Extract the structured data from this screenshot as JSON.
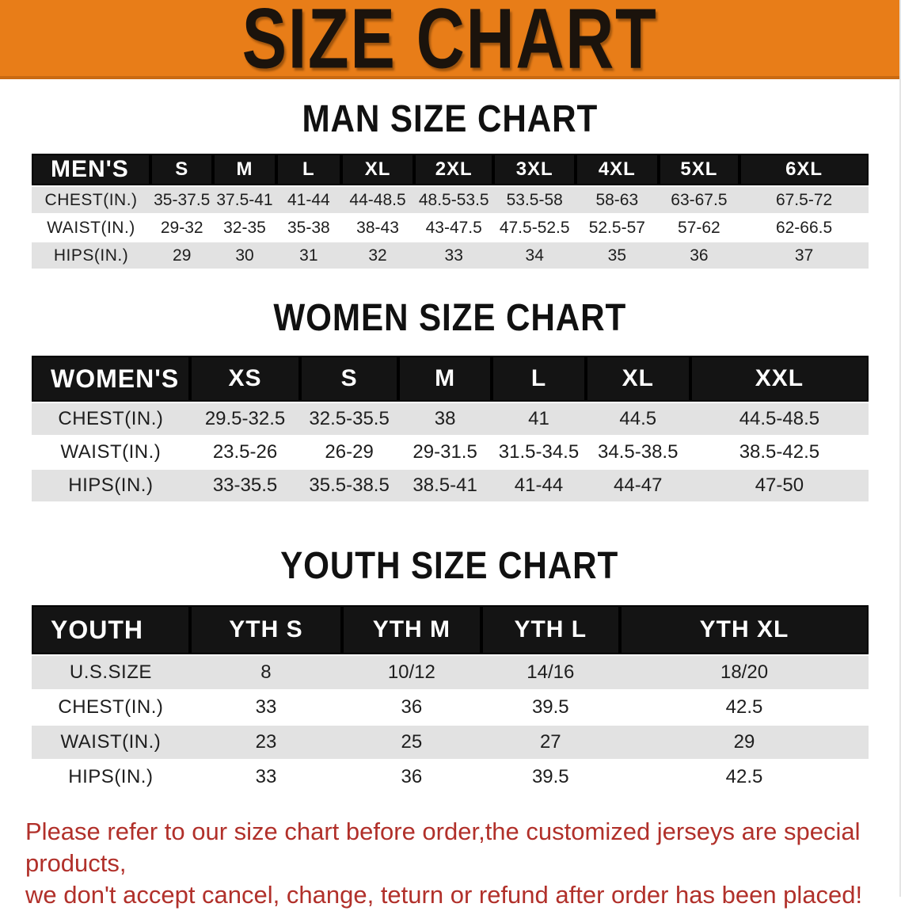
{
  "banner": {
    "title": "SIZE CHART"
  },
  "colors": {
    "banner_bg": "#E87D18",
    "banner_edge": "#C96A12",
    "header_bg": "#141414",
    "stripe": "#E2E2E2",
    "disclaimer": "#B1302A"
  },
  "sections": {
    "men": {
      "title": "MAN SIZE CHART",
      "table": {
        "header": [
          "MEN'S",
          "S",
          "M",
          "L",
          "XL",
          "2XL",
          "3XL",
          "4XL",
          "5XL",
          "6XL"
        ],
        "rows": [
          {
            "label": "CHEST(IN.)",
            "values": [
              "35-37.5",
              "37.5-41",
              "41-44",
              "44-48.5",
              "48.5-53.5",
              "53.5-58",
              "58-63",
              "63-67.5",
              "67.5-72"
            ]
          },
          {
            "label": "WAIST(IN.)",
            "values": [
              "29-32",
              "32-35",
              "35-38",
              "38-43",
              "43-47.5",
              "47.5-52.5",
              "52.5-57",
              "57-62",
              "62-66.5"
            ]
          },
          {
            "label": "HIPS(IN.)",
            "values": [
              "29",
              "30",
              "31",
              "32",
              "33",
              "34",
              "35",
              "36",
              "37"
            ]
          }
        ]
      }
    },
    "women": {
      "title": "WOMEN SIZE CHART",
      "table": {
        "header": [
          "WOMEN'S",
          "XS",
          "S",
          "M",
          "L",
          "XL",
          "XXL"
        ],
        "rows": [
          {
            "label": "CHEST(IN.)",
            "values": [
              "29.5-32.5",
              "32.5-35.5",
              "38",
              "41",
              "44.5",
              "44.5-48.5"
            ]
          },
          {
            "label": "WAIST(IN.)",
            "values": [
              "23.5-26",
              "26-29",
              "29-31.5",
              "31.5-34.5",
              "34.5-38.5",
              "38.5-42.5"
            ]
          },
          {
            "label": "HIPS(IN.)",
            "values": [
              "33-35.5",
              "35.5-38.5",
              "38.5-41",
              "41-44",
              "44-47",
              "47-50"
            ]
          }
        ]
      }
    },
    "youth": {
      "title": "YOUTH SIZE CHART",
      "table": {
        "header": [
          "YOUTH",
          "YTH S",
          "YTH M",
          "YTH L",
          "YTH XL"
        ],
        "rows": [
          {
            "label": "U.S.SIZE",
            "values": [
              "8",
              "10/12",
              "14/16",
              "18/20"
            ]
          },
          {
            "label": "CHEST(IN.)",
            "values": [
              "33",
              "36",
              "39.5",
              "42.5"
            ]
          },
          {
            "label": "WAIST(IN.)",
            "values": [
              "23",
              "25",
              "27",
              "29"
            ]
          },
          {
            "label": "HIPS(IN.)",
            "values": [
              "33",
              "36",
              "39.5",
              "42.5"
            ]
          }
        ]
      }
    }
  },
  "disclaimer": {
    "line1": "Please refer to our size chart before order,the customized jerseys are special products,",
    "line2": "we don't accept cancel, change, teturn or refund after order has been placed!"
  }
}
